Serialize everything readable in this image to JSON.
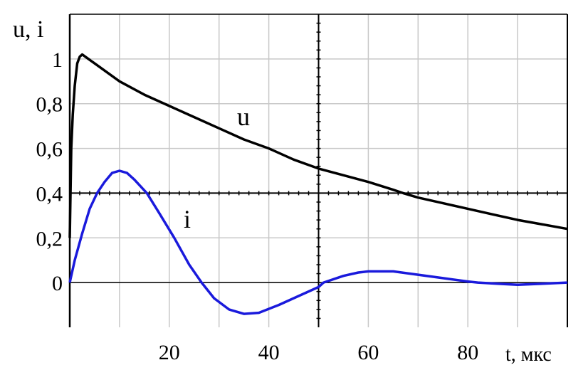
{
  "chart_data": {
    "type": "line",
    "ylabel": "u, i",
    "xlabel": "t, мкс",
    "xlim": [
      0,
      100
    ],
    "ylim": [
      -0.2,
      1.2
    ],
    "x_ticks": [
      20,
      40,
      60,
      80
    ],
    "x_tick_labels": [
      "20",
      "40",
      "60",
      "80"
    ],
    "y_ticks": [
      0,
      0.2,
      0.4,
      0.6,
      0.8,
      1
    ],
    "y_tick_labels": [
      "0",
      "0,2",
      "0,4",
      "0,6",
      "0,8",
      "1"
    ],
    "grid": true,
    "grid_step_x": 10,
    "grid_step_y": 0.2,
    "crosshair": {
      "x": 50,
      "y": 0.4
    },
    "colors": {
      "grid": "#c8c8c8",
      "axis": "#000000"
    },
    "series": [
      {
        "name": "u",
        "color": "#000000",
        "x": [
          0,
          0.3,
          0.6,
          1,
          1.5,
          2,
          2.5,
          5,
          10,
          15,
          20,
          25,
          30,
          35,
          40,
          45,
          50,
          55,
          60,
          65,
          67,
          70,
          75,
          80,
          85,
          90,
          95,
          100
        ],
        "y": [
          0.2,
          0.6,
          0.75,
          0.88,
          0.98,
          1.01,
          1.02,
          0.98,
          0.9,
          0.84,
          0.79,
          0.74,
          0.69,
          0.64,
          0.6,
          0.55,
          0.51,
          0.48,
          0.45,
          0.415,
          0.4,
          0.38,
          0.355,
          0.33,
          0.305,
          0.28,
          0.26,
          0.24
        ]
      },
      {
        "name": "i",
        "color": "#1a1adc",
        "x": [
          0,
          1,
          2.5,
          4,
          5.5,
          7,
          8.5,
          10,
          11.5,
          13,
          15.5,
          18,
          21,
          24,
          26.5,
          29,
          32,
          35,
          38,
          42,
          46,
          50,
          51,
          55,
          58,
          60,
          65,
          70,
          75,
          80,
          82,
          86,
          90,
          95,
          100
        ],
        "y": [
          0,
          0.1,
          0.22,
          0.33,
          0.4,
          0.45,
          0.49,
          0.5,
          0.49,
          0.46,
          0.4,
          0.31,
          0.2,
          0.08,
          0,
          -0.07,
          -0.12,
          -0.14,
          -0.135,
          -0.1,
          -0.06,
          -0.02,
          0,
          0.03,
          0.045,
          0.05,
          0.05,
          0.035,
          0.02,
          0.005,
          0,
          -0.005,
          -0.01,
          -0.005,
          0
        ]
      }
    ]
  }
}
